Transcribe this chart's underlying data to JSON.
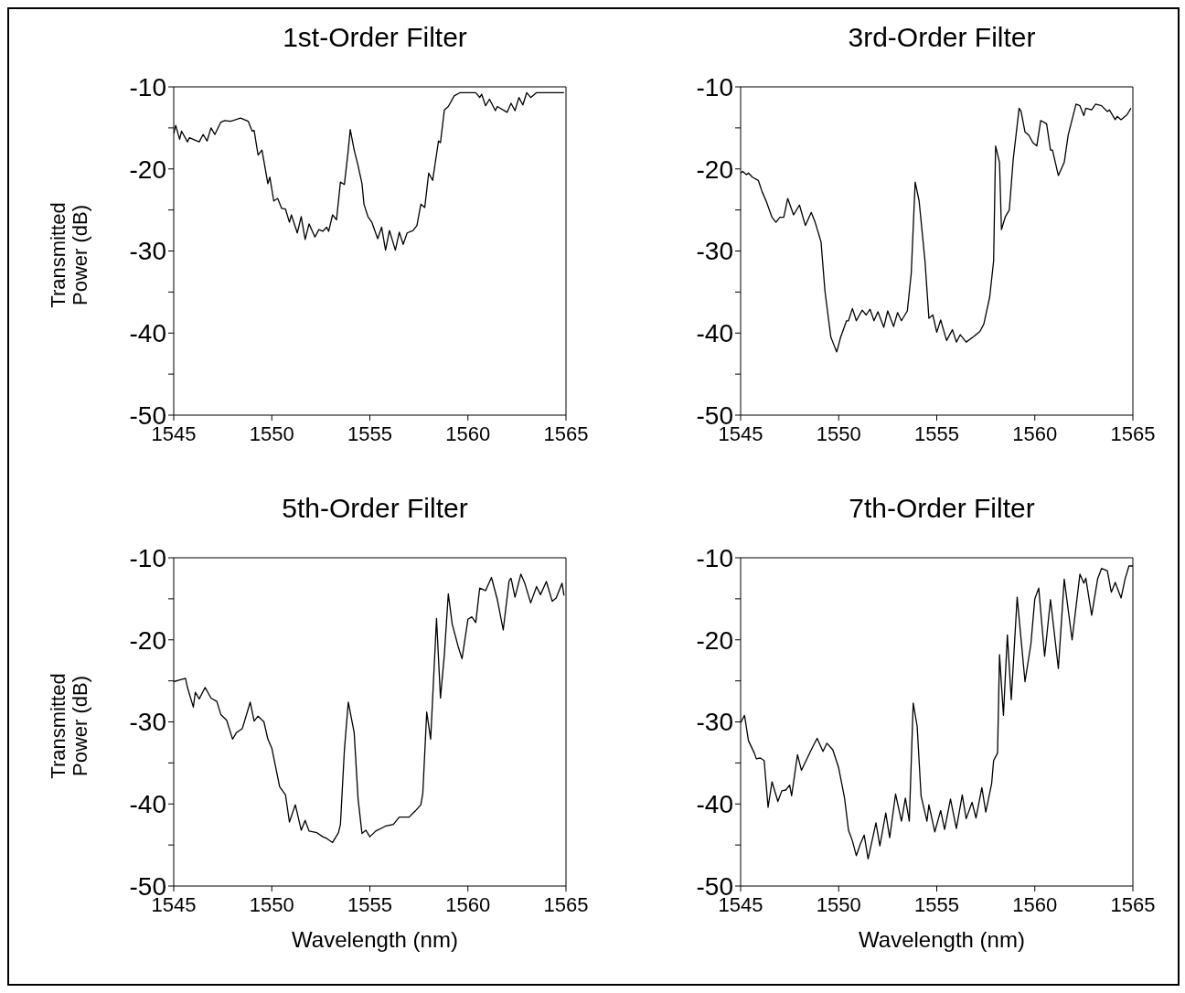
{
  "chart_data": [
    {
      "type": "line",
      "title": "1st-Order Filter",
      "ylabel": "Transmitted Power (dB)",
      "xlim": [
        1545,
        1565
      ],
      "xticks": [
        1545,
        1550,
        1555,
        1560,
        1565
      ],
      "ylim": [
        -50,
        -10
      ],
      "yticks": [
        -50,
        {
          "value": -45,
          "label": null
        },
        -40,
        {
          "value": -35,
          "label": null
        },
        -30,
        {
          "value": -25,
          "label": null
        },
        -20,
        {
          "value": -15,
          "label": null
        },
        -10
      ],
      "marker": "none",
      "line_style": "solid",
      "series": [
        {
          "color": "#000000",
          "x": [
            1545.0,
            1545.1,
            1545.3,
            1545.4,
            1545.7,
            1545.8,
            1546.1,
            1546.3,
            1546.5,
            1546.7,
            1546.9,
            1547.1,
            1547.4,
            1547.6,
            1547.9,
            1548.4,
            1548.8,
            1549.0,
            1549.1,
            1549.3,
            1549.5,
            1549.8,
            1549.9,
            1550.1,
            1550.3,
            1550.5,
            1550.7,
            1550.9,
            1551.0,
            1551.3,
            1551.5,
            1551.7,
            1551.9,
            1552.2,
            1552.4,
            1552.6,
            1552.8,
            1552.9,
            1553.1,
            1553.3,
            1553.5,
            1553.7,
            1553.9,
            1554.0,
            1554.2,
            1554.4,
            1554.6,
            1554.7,
            1554.9,
            1555.1,
            1555.4,
            1555.6,
            1555.8,
            1556.0,
            1556.3,
            1556.5,
            1556.7,
            1556.9,
            1557.2,
            1557.4,
            1557.6,
            1557.8,
            1558.0,
            1558.2,
            1558.5,
            1558.6,
            1558.8,
            1559.0,
            1559.3,
            1559.6,
            1560.4,
            1560.6,
            1560.7,
            1560.9,
            1561.1,
            1561.4,
            1561.5,
            1562.0,
            1562.2,
            1562.4,
            1562.6,
            1562.8,
            1563.0,
            1563.2,
            1563.5,
            1564.0,
            1564.9
          ],
          "values": [
            -15.7,
            -14.7,
            -16.4,
            -15.4,
            -16.7,
            -16.2,
            -16.5,
            -16.7,
            -15.8,
            -16.6,
            -15.0,
            -15.8,
            -14.3,
            -14.1,
            -14.2,
            -13.8,
            -14.2,
            -15.4,
            -15.3,
            -18.3,
            -17.7,
            -21.8,
            -21.0,
            -23.9,
            -23.6,
            -24.8,
            -24.9,
            -26.5,
            -25.6,
            -27.8,
            -25.8,
            -28.6,
            -26.7,
            -28.3,
            -27.4,
            -27.6,
            -27.1,
            -27.6,
            -25.6,
            -26.2,
            -21.6,
            -21.9,
            -17.7,
            -15.2,
            -17.7,
            -19.6,
            -21.8,
            -24.3,
            -25.8,
            -26.5,
            -28.5,
            -27.1,
            -29.9,
            -27.5,
            -29.9,
            -27.7,
            -29.2,
            -27.8,
            -27.5,
            -26.9,
            -24.3,
            -24.7,
            -20.5,
            -21.4,
            -16.6,
            -16.8,
            -12.8,
            -12.4,
            -11.1,
            -10.7,
            -10.7,
            -11.3,
            -10.9,
            -12.3,
            -11.5,
            -12.9,
            -12.4,
            -13.1,
            -12.0,
            -12.9,
            -11.3,
            -12.2,
            -10.7,
            -11.3,
            -10.7,
            -10.7,
            -10.7
          ]
        }
      ]
    },
    {
      "type": "line",
      "title": "3rd-Order Filter",
      "xlim": [
        1545,
        1565
      ],
      "xticks": [
        1545,
        1550,
        1555,
        1560,
        1565
      ],
      "ylim": [
        -50,
        -10
      ],
      "yticks": [
        -50,
        {
          "value": -45,
          "label": null
        },
        -40,
        {
          "value": -35,
          "label": null
        },
        -30,
        {
          "value": -25,
          "label": null
        },
        -20,
        {
          "value": -15,
          "label": null
        },
        -10
      ],
      "marker": "none",
      "line_style": "solid",
      "series": [
        {
          "color": "#000000",
          "x": [
            1545.0,
            1545.1,
            1545.3,
            1545.4,
            1545.6,
            1545.9,
            1546.1,
            1546.3,
            1546.6,
            1546.8,
            1547.0,
            1547.2,
            1547.4,
            1547.7,
            1548.0,
            1548.3,
            1548.6,
            1548.8,
            1549.0,
            1549.1,
            1549.3,
            1549.6,
            1549.7,
            1549.9,
            1550.1,
            1550.4,
            1550.5,
            1550.7,
            1550.9,
            1551.2,
            1551.4,
            1551.6,
            1551.8,
            1552.0,
            1552.3,
            1552.5,
            1552.8,
            1553.0,
            1553.2,
            1553.5,
            1553.7,
            1553.9,
            1554.1,
            1554.4,
            1554.6,
            1554.8,
            1555.0,
            1555.2,
            1555.5,
            1555.8,
            1556.0,
            1556.2,
            1556.5,
            1556.9,
            1557.2,
            1557.4,
            1557.7,
            1557.9,
            1558.0,
            1558.2,
            1558.3,
            1558.5,
            1558.7,
            1558.9,
            1559.2,
            1559.3,
            1559.5,
            1559.7,
            1559.9,
            1560.1,
            1560.3,
            1560.6,
            1560.8,
            1560.9,
            1561.2,
            1561.5,
            1561.7,
            1562.1,
            1562.3,
            1562.5,
            1562.6,
            1562.9,
            1563.1,
            1563.4,
            1563.7,
            1563.8,
            1564.1,
            1564.2,
            1564.4,
            1564.7,
            1564.9
          ],
          "values": [
            -20.5,
            -20.3,
            -20.7,
            -20.5,
            -21.0,
            -21.4,
            -22.8,
            -23.9,
            -25.9,
            -26.5,
            -25.9,
            -25.9,
            -23.6,
            -25.6,
            -24.4,
            -26.9,
            -25.3,
            -26.5,
            -28.1,
            -28.9,
            -34.9,
            -40.5,
            -41.1,
            -42.3,
            -40.5,
            -38.5,
            -38.5,
            -37.0,
            -38.5,
            -37.2,
            -37.8,
            -37.1,
            -38.5,
            -37.4,
            -39.3,
            -37.3,
            -39.2,
            -37.5,
            -38.5,
            -37.3,
            -32.7,
            -21.6,
            -23.9,
            -31.2,
            -38.2,
            -37.8,
            -39.9,
            -38.4,
            -40.9,
            -39.6,
            -41.1,
            -40.2,
            -41.1,
            -40.4,
            -39.8,
            -38.9,
            -35.6,
            -31.2,
            -17.2,
            -19.2,
            -27.4,
            -25.8,
            -25.0,
            -18.8,
            -12.6,
            -13.0,
            -15.5,
            -15.9,
            -16.8,
            -17.2,
            -14.1,
            -14.5,
            -17.7,
            -17.7,
            -20.8,
            -19.2,
            -15.9,
            -12.1,
            -12.3,
            -13.5,
            -12.6,
            -12.8,
            -12.1,
            -12.3,
            -13.0,
            -12.8,
            -14.0,
            -13.6,
            -14.0,
            -13.4,
            -12.6
          ]
        }
      ]
    },
    {
      "type": "line",
      "title": "5th-Order Filter",
      "ylabel": "Transmitted Power (dB)",
      "xlabel": "Wavelength (nm)",
      "xlim": [
        1545,
        1565
      ],
      "xticks": [
        1545,
        1550,
        1555,
        1560,
        1565
      ],
      "ylim": [
        -50,
        -10
      ],
      "yticks": [
        -50,
        {
          "value": -45,
          "label": null
        },
        -40,
        {
          "value": -35,
          "label": null
        },
        -30,
        {
          "value": -25,
          "label": null
        },
        -20,
        {
          "value": -15,
          "label": null
        },
        -10
      ],
      "marker": "none",
      "line_style": "solid",
      "series": [
        {
          "color": "#000000",
          "x": [
            1545.0,
            1545.3,
            1545.6,
            1545.7,
            1546.0,
            1546.1,
            1546.3,
            1546.6,
            1546.9,
            1547.2,
            1547.4,
            1547.7,
            1548.0,
            1548.2,
            1548.5,
            1548.9,
            1549.1,
            1549.3,
            1549.6,
            1549.8,
            1550.0,
            1550.4,
            1550.7,
            1550.9,
            1551.2,
            1551.5,
            1551.7,
            1551.9,
            1552.3,
            1552.6,
            1552.8,
            1553.1,
            1553.4,
            1553.5,
            1553.7,
            1553.9,
            1554.2,
            1554.4,
            1554.6,
            1554.8,
            1555.0,
            1555.3,
            1555.8,
            1556.2,
            1556.5,
            1557.0,
            1557.3,
            1557.6,
            1557.7,
            1557.9,
            1558.1,
            1558.4,
            1558.6,
            1558.8,
            1559.0,
            1559.2,
            1559.5,
            1559.7,
            1560.0,
            1560.2,
            1560.4,
            1560.6,
            1560.9,
            1561.2,
            1561.5,
            1561.8,
            1562.1,
            1562.2,
            1562.4,
            1562.7,
            1562.9,
            1563.2,
            1563.5,
            1563.7,
            1564.0,
            1564.3,
            1564.5,
            1564.8,
            1564.9
          ],
          "values": [
            -25.1,
            -24.9,
            -24.7,
            -25.8,
            -28.2,
            -26.4,
            -27.2,
            -25.8,
            -27.1,
            -27.5,
            -29.1,
            -29.8,
            -32.1,
            -31.3,
            -30.8,
            -27.6,
            -29.9,
            -29.3,
            -30.0,
            -32.1,
            -33.2,
            -37.9,
            -38.9,
            -42.2,
            -40.1,
            -43.2,
            -42.0,
            -43.3,
            -43.5,
            -44.0,
            -44.2,
            -44.7,
            -43.5,
            -42.5,
            -33.5,
            -27.6,
            -31.3,
            -39.4,
            -43.6,
            -43.2,
            -44.0,
            -43.3,
            -42.7,
            -42.5,
            -41.6,
            -41.6,
            -40.9,
            -40.1,
            -38.7,
            -28.8,
            -32.1,
            -17.4,
            -27.1,
            -21.8,
            -14.4,
            -18.1,
            -20.8,
            -22.3,
            -17.5,
            -17.2,
            -17.9,
            -13.7,
            -14.0,
            -12.4,
            -15.1,
            -18.8,
            -12.8,
            -12.5,
            -14.8,
            -12.0,
            -13.1,
            -15.5,
            -13.5,
            -14.5,
            -12.9,
            -15.3,
            -14.9,
            -13.1,
            -14.6
          ]
        }
      ]
    },
    {
      "type": "line",
      "title": "7th-Order Filter",
      "xlabel": "Wavelength (nm)",
      "xlim": [
        1545,
        1565
      ],
      "xticks": [
        1545,
        1550,
        1555,
        1560,
        1565
      ],
      "ylim": [
        -50,
        -10
      ],
      "yticks": [
        -50,
        {
          "value": -45,
          "label": null
        },
        -40,
        {
          "value": -35,
          "label": null
        },
        -30,
        {
          "value": -25,
          "label": null
        },
        -20,
        {
          "value": -15,
          "label": null
        },
        -10
      ],
      "marker": "none",
      "line_style": "solid",
      "series": [
        {
          "color": "#000000",
          "x": [
            1545.0,
            1545.2,
            1545.4,
            1545.7,
            1545.8,
            1546.0,
            1546.2,
            1546.4,
            1546.6,
            1546.9,
            1547.1,
            1547.3,
            1547.5,
            1547.6,
            1547.9,
            1548.1,
            1548.4,
            1548.6,
            1548.9,
            1549.2,
            1549.4,
            1549.7,
            1550.0,
            1550.3,
            1550.5,
            1550.7,
            1550.9,
            1551.1,
            1551.3,
            1551.5,
            1551.9,
            1552.1,
            1552.4,
            1552.6,
            1552.9,
            1553.2,
            1553.4,
            1553.6,
            1553.8,
            1554.0,
            1554.2,
            1554.5,
            1554.6,
            1554.9,
            1555.2,
            1555.4,
            1555.7,
            1556.0,
            1556.3,
            1556.5,
            1556.8,
            1557.0,
            1557.3,
            1557.5,
            1557.8,
            1557.9,
            1558.1,
            1558.2,
            1558.4,
            1558.6,
            1558.8,
            1559.1,
            1559.5,
            1559.8,
            1560.0,
            1560.2,
            1560.5,
            1560.8,
            1561.2,
            1561.5,
            1561.9,
            1562.3,
            1562.5,
            1562.6,
            1562.9,
            1563.2,
            1563.4,
            1563.7,
            1563.9,
            1564.1,
            1564.4,
            1564.6,
            1564.8,
            1565.0
          ],
          "values": [
            -30.1,
            -29.2,
            -32.3,
            -33.8,
            -34.5,
            -34.4,
            -34.7,
            -40.4,
            -37.3,
            -39.7,
            -38.4,
            -38.3,
            -37.7,
            -39.0,
            -34.0,
            -35.9,
            -34.4,
            -33.4,
            -32.0,
            -33.6,
            -32.6,
            -33.4,
            -35.6,
            -39.3,
            -43.2,
            -44.5,
            -46.3,
            -44.9,
            -43.8,
            -46.7,
            -42.3,
            -45.1,
            -41.1,
            -44.1,
            -38.8,
            -42.1,
            -39.3,
            -42.1,
            -27.7,
            -30.5,
            -39.0,
            -42.1,
            -40.1,
            -43.4,
            -40.8,
            -43.1,
            -39.4,
            -43.0,
            -38.9,
            -41.8,
            -39.8,
            -41.7,
            -38.0,
            -41.0,
            -37.5,
            -34.7,
            -33.8,
            -21.8,
            -29.2,
            -19.4,
            -27.3,
            -14.8,
            -25.1,
            -20.5,
            -15.0,
            -13.7,
            -22.0,
            -15.1,
            -23.5,
            -12.6,
            -20.0,
            -12.0,
            -13.1,
            -12.5,
            -17.0,
            -12.6,
            -11.3,
            -11.6,
            -14.2,
            -13.0,
            -14.9,
            -12.6,
            -11.0,
            -11.0
          ]
        }
      ]
    }
  ]
}
